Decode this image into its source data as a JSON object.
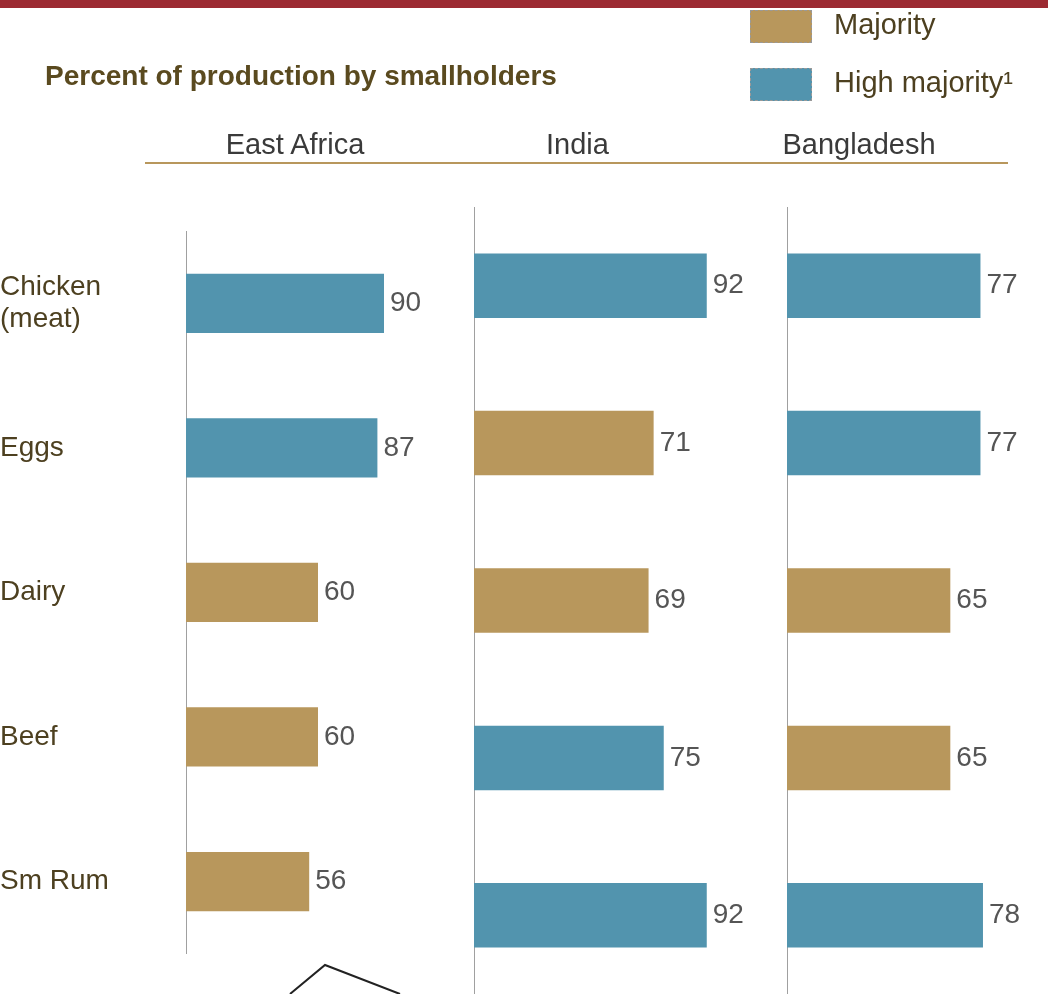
{
  "chart_data": [
    {
      "type": "bar",
      "orientation": "horizontal",
      "title": "Percent of production by smallholders",
      "subtitle": "East Africa",
      "categories": [
        "Chicken (meat)",
        "Eggs",
        "Dairy",
        "Beef",
        "Sm Rum"
      ],
      "tick_labels": "y",
      "data_labels": true,
      "series": [
        {
          "color": "#b8975c",
          "values": [
            null,
            null,
            60,
            60,
            56
          ]
        },
        {
          "color": "#5294ae",
          "values": [
            90,
            87,
            null,
            null,
            null
          ]
        }
      ]
    },
    {
      "type": "bar",
      "orientation": "horizontal",
      "subtitle": "India",
      "categories": [
        null,
        null,
        null,
        null,
        null
      ],
      "tick_labels": false,
      "data_labels": true,
      "series": [
        {
          "color": "#b8975c",
          "values": [
            null,
            71,
            69,
            null,
            null
          ]
        },
        {
          "color": "#5294ae",
          "values": [
            92,
            null,
            null,
            75,
            92
          ]
        }
      ]
    },
    {
      "type": "bar",
      "orientation": "horizontal",
      "subtitle": "Bangladesh",
      "categories": [
        null,
        null,
        null,
        null,
        null
      ],
      "tick_labels": false,
      "data_labels": true,
      "legend": "top",
      "series": [
        {
          "name": "Majority",
          "color": "#b8975c",
          "values": [
            null,
            null,
            65,
            65,
            null
          ]
        },
        {
          "name": "High majority¹",
          "color": "#5294ae",
          "values": [
            77,
            77,
            null,
            null,
            78
          ]
        }
      ]
    }
  ]
}
